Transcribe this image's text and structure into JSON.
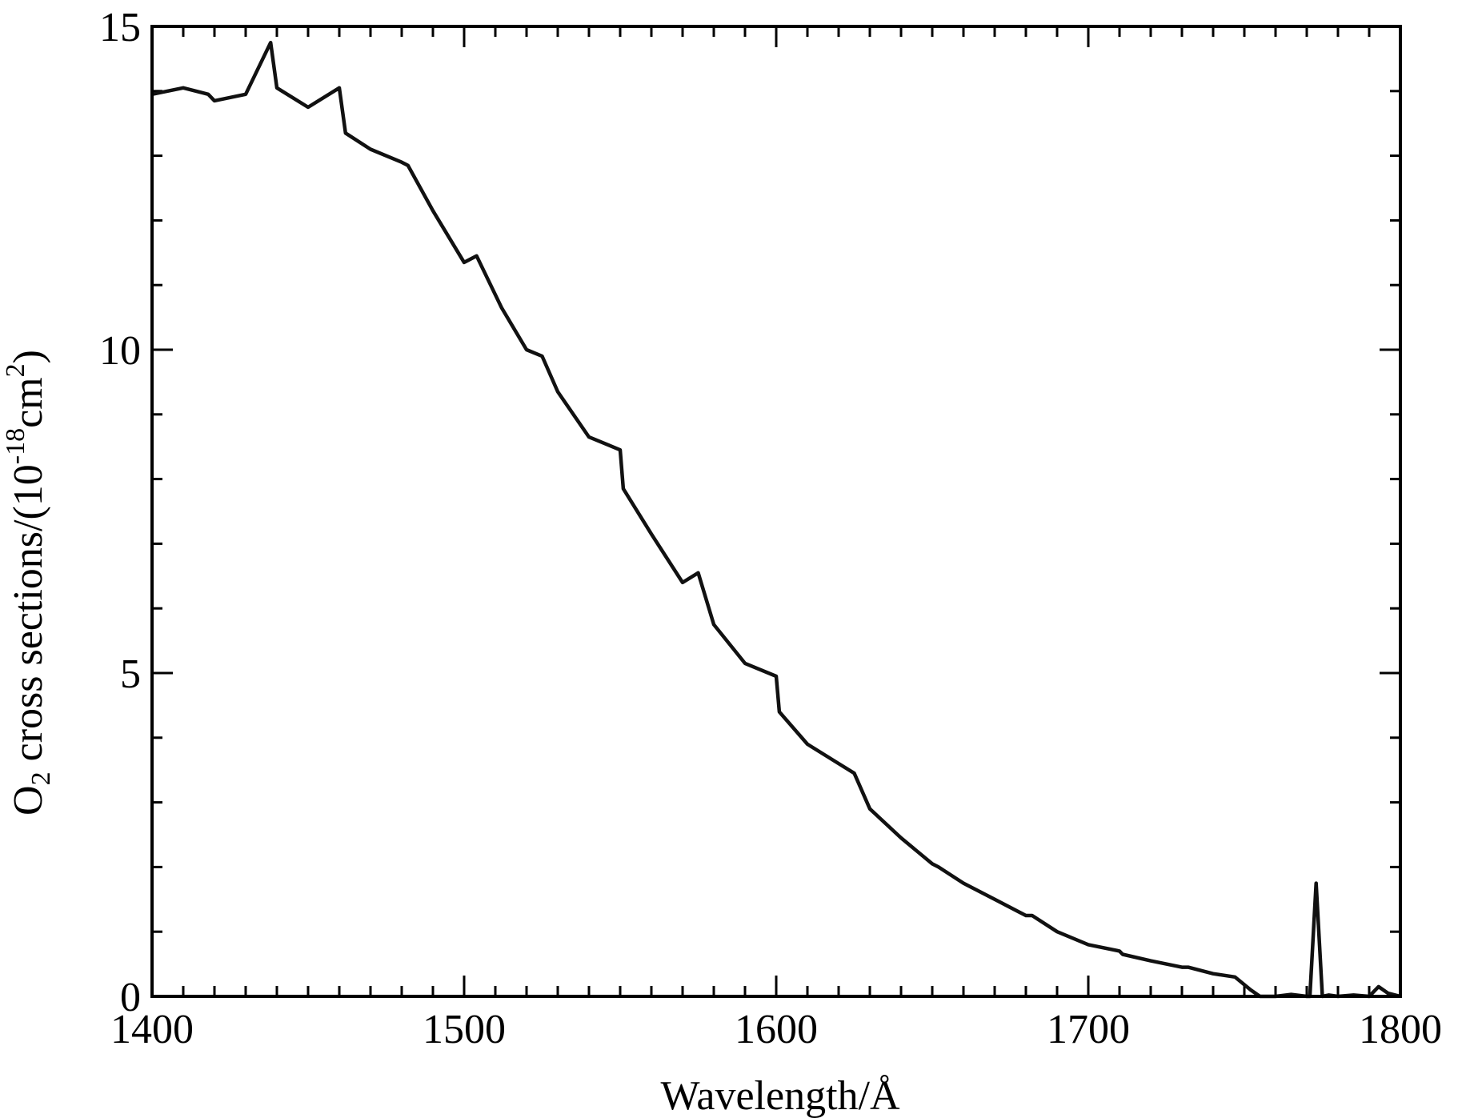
{
  "chart_data": {
    "type": "line",
    "title": "",
    "xlabel": {
      "prefix": "Wavelength/Å"
    },
    "ylabel": {
      "o": "O",
      "sub": "2",
      "mid": " cross sections/(10",
      "sup1": "-18",
      "cm": "cm",
      "sup2": "2",
      "close": ")"
    },
    "xlim": [
      1400,
      1800
    ],
    "ylim": [
      0,
      15
    ],
    "x_major_ticks": [
      1400,
      1500,
      1600,
      1700,
      1800
    ],
    "x_minor_step": 10,
    "y_major_ticks": [
      0,
      5,
      10,
      15
    ],
    "y_minor_step": 1,
    "grid": false,
    "series": [
      {
        "x": [
          1400,
          1410,
          1418,
          1420,
          1430,
          1438,
          1440,
          1450,
          1460,
          1462,
          1470,
          1480,
          1482,
          1490,
          1500,
          1504,
          1512,
          1520,
          1525,
          1530,
          1540,
          1550,
          1551,
          1560,
          1570,
          1575,
          1580,
          1590,
          1600,
          1601,
          1610,
          1620,
          1625,
          1630,
          1640,
          1650,
          1652,
          1660,
          1670,
          1680,
          1682,
          1690,
          1700,
          1710,
          1711,
          1720,
          1730,
          1732,
          1740,
          1747,
          1752,
          1755,
          1760,
          1765,
          1770,
          1771,
          1773,
          1775,
          1777,
          1780,
          1785,
          1790,
          1793,
          1796,
          1800
        ],
        "y": [
          13.95,
          14.05,
          13.95,
          13.85,
          13.95,
          14.75,
          14.05,
          13.75,
          14.05,
          13.35,
          13.1,
          12.9,
          12.85,
          12.15,
          11.35,
          11.45,
          10.65,
          10.0,
          9.9,
          9.35,
          8.65,
          8.45,
          7.85,
          7.15,
          6.4,
          6.55,
          5.75,
          5.15,
          4.95,
          4.4,
          3.9,
          3.6,
          3.45,
          2.9,
          2.45,
          2.05,
          2.0,
          1.75,
          1.5,
          1.25,
          1.25,
          1.0,
          0.8,
          0.7,
          0.65,
          0.55,
          0.45,
          0.45,
          0.35,
          0.3,
          0.1,
          0.0,
          0.0,
          0.03,
          0.0,
          0.0,
          1.75,
          0.0,
          0.02,
          0.0,
          0.02,
          0.0,
          0.15,
          0.05,
          0.0
        ]
      }
    ]
  }
}
